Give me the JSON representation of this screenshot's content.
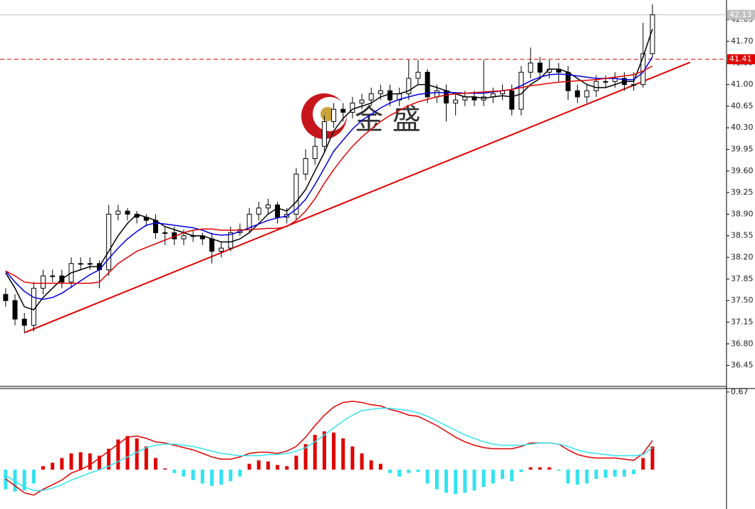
{
  "chart_data": [
    {
      "type": "candlestick",
      "watermark": "金 盛",
      "xlim": [
        -0.6,
        76.9
      ],
      "ylim": [
        36.11,
        42.37
      ],
      "yticks": [
        42.05,
        {
          "value": 41.7,
          "label": "41.70"
        },
        41.35,
        {
          "value": 41.0,
          "label": "41.00"
        },
        40.65,
        {
          "value": 40.3,
          "label": "40.30"
        },
        39.95,
        {
          "value": 39.6,
          "label": "39.60"
        },
        39.25,
        {
          "value": 38.9,
          "label": "38.90"
        },
        38.55,
        {
          "value": 38.2,
          "label": "38.20"
        },
        37.85,
        {
          "value": 37.5,
          "label": "37.50"
        },
        37.15,
        {
          "value": 36.8,
          "label": "36.80"
        },
        36.45
      ],
      "up_color": "#ffffff",
      "down_color": "#000000",
      "outline_color": "#000000",
      "open": [
        37.6,
        37.5,
        37.2,
        37.1,
        37.7,
        37.9,
        37.9,
        37.8,
        38.1,
        38.1,
        38.1,
        38.0,
        38.9,
        38.95,
        38.9,
        38.85,
        38.8,
        38.6,
        38.6,
        38.5,
        38.55,
        38.55,
        38.5,
        38.3,
        38.35,
        38.6,
        38.65,
        38.9,
        39.0,
        39.05,
        38.85,
        38.9,
        39.55,
        39.8,
        40.0,
        40.4,
        40.6,
        40.55,
        40.7,
        40.75,
        40.85,
        40.9,
        40.75,
        40.85,
        41.1,
        41.2,
        40.8,
        40.9,
        40.7,
        40.75,
        40.8,
        40.75,
        40.8,
        40.85,
        40.9,
        40.6,
        41.2,
        41.35,
        41.2,
        41.25,
        41.2,
        40.9,
        40.8,
        40.9,
        41.05,
        41.05,
        41.1,
        41.0,
        41.0,
        41.5
      ],
      "high": [
        37.7,
        37.6,
        37.3,
        37.8,
        38.0,
        38.0,
        38.0,
        38.2,
        38.2,
        38.2,
        38.15,
        39.05,
        39.05,
        39.0,
        38.95,
        38.9,
        38.9,
        38.7,
        38.7,
        38.65,
        38.65,
        38.6,
        38.6,
        38.45,
        38.7,
        38.75,
        39.0,
        39.1,
        39.15,
        39.1,
        39.0,
        39.65,
        39.95,
        40.15,
        40.5,
        40.7,
        40.7,
        40.8,
        40.85,
        40.95,
        41.0,
        41.0,
        40.95,
        41.4,
        41.4,
        41.25,
        41.0,
        41.0,
        40.85,
        40.9,
        40.9,
        41.4,
        40.95,
        41.0,
        41.0,
        41.3,
        41.6,
        41.45,
        41.4,
        41.35,
        41.3,
        41.0,
        41.0,
        41.15,
        41.15,
        41.2,
        41.2,
        41.2,
        42.0,
        42.3
      ],
      "low": [
        37.4,
        37.1,
        36.98,
        37.0,
        37.6,
        37.8,
        37.7,
        37.7,
        38.0,
        38.0,
        37.7,
        37.9,
        38.8,
        38.8,
        38.75,
        38.7,
        38.5,
        38.4,
        38.4,
        38.4,
        38.45,
        38.4,
        38.1,
        38.2,
        38.3,
        38.55,
        38.6,
        38.8,
        38.9,
        38.75,
        38.75,
        38.8,
        39.45,
        39.7,
        39.9,
        40.3,
        40.4,
        40.45,
        40.6,
        40.65,
        40.75,
        40.65,
        40.65,
        40.75,
        41.0,
        40.7,
        40.7,
        40.4,
        40.5,
        40.65,
        40.65,
        40.65,
        40.7,
        40.75,
        40.5,
        40.5,
        41.1,
        41.1,
        41.1,
        41.05,
        40.75,
        40.7,
        40.7,
        40.8,
        40.95,
        40.95,
        40.9,
        40.9,
        40.95,
        41.45
      ],
      "close": [
        37.5,
        37.2,
        37.1,
        37.7,
        37.9,
        37.9,
        37.8,
        38.1,
        38.1,
        38.1,
        38.0,
        38.9,
        38.95,
        38.9,
        38.85,
        38.8,
        38.6,
        38.6,
        38.5,
        38.55,
        38.55,
        38.5,
        38.3,
        38.35,
        38.6,
        38.65,
        38.9,
        39.0,
        39.05,
        38.85,
        38.9,
        39.55,
        39.8,
        40.0,
        40.4,
        40.6,
        40.55,
        40.7,
        40.75,
        40.85,
        40.9,
        40.75,
        40.85,
        41.1,
        41.2,
        40.8,
        40.9,
        40.7,
        40.75,
        40.8,
        40.75,
        40.8,
        40.85,
        40.9,
        40.6,
        41.2,
        41.35,
        41.2,
        41.25,
        41.2,
        40.9,
        40.8,
        40.9,
        41.05,
        41.05,
        41.1,
        41.0,
        41.0,
        41.5,
        42.13
      ],
      "series": [
        {
          "color": "#000000",
          "values": [
            37.95,
            37.7,
            37.4,
            37.35,
            37.55,
            37.7,
            37.85,
            37.95,
            38.0,
            38.05,
            38.05,
            38.3,
            38.55,
            38.75,
            38.9,
            38.85,
            38.8,
            38.7,
            38.65,
            38.6,
            38.55,
            38.55,
            38.5,
            38.45,
            38.45,
            38.5,
            38.6,
            38.75,
            38.9,
            39.0,
            38.95,
            39.1,
            39.3,
            39.6,
            39.9,
            40.25,
            40.45,
            40.6,
            40.65,
            40.7,
            40.8,
            40.85,
            40.85,
            40.9,
            41.0,
            41.0,
            40.95,
            40.9,
            40.85,
            40.8,
            40.8,
            40.78,
            40.8,
            40.82,
            40.8,
            40.85,
            41.0,
            41.1,
            41.25,
            41.25,
            41.2,
            41.1,
            41.0,
            40.95,
            40.95,
            41.0,
            41.05,
            41.05,
            41.45,
            41.9
          ]
        },
        {
          "color": "#0000dd",
          "values": [
            37.98,
            37.8,
            37.65,
            37.55,
            37.52,
            37.55,
            37.62,
            37.72,
            37.82,
            37.92,
            38.0,
            38.18,
            38.35,
            38.5,
            38.62,
            38.72,
            38.76,
            38.74,
            38.72,
            38.7,
            38.68,
            38.64,
            38.58,
            38.56,
            38.57,
            38.62,
            38.68,
            38.74,
            38.8,
            38.84,
            38.87,
            38.98,
            39.14,
            39.38,
            39.65,
            39.92,
            40.1,
            40.28,
            40.42,
            40.52,
            40.62,
            40.7,
            40.76,
            40.8,
            40.84,
            40.86,
            40.87,
            40.87,
            40.87,
            40.86,
            40.86,
            40.86,
            40.88,
            40.9,
            40.92,
            40.98,
            41.06,
            41.12,
            41.16,
            41.17,
            41.16,
            41.14,
            41.12,
            41.1,
            41.1,
            41.1,
            41.08,
            41.08,
            41.2,
            41.45
          ]
        },
        {
          "color": "#e00000",
          "values": [
            37.98,
            37.9,
            37.8,
            37.78,
            37.78,
            37.78,
            37.78,
            37.78,
            37.78,
            37.78,
            37.8,
            37.95,
            38.1,
            38.2,
            38.3,
            38.36,
            38.42,
            38.48,
            38.54,
            38.6,
            38.64,
            38.66,
            38.66,
            38.64,
            38.64,
            38.64,
            38.65,
            38.66,
            38.67,
            38.67,
            38.7,
            38.8,
            38.95,
            39.15,
            39.4,
            39.62,
            39.82,
            40.0,
            40.15,
            40.28,
            40.4,
            40.5,
            40.58,
            40.66,
            40.72,
            40.76,
            40.8,
            40.83,
            40.85,
            40.86,
            40.87,
            40.88,
            40.89,
            40.9,
            40.92,
            40.95,
            40.98,
            41.0,
            41.02,
            41.04,
            41.05,
            41.06,
            41.07,
            41.08,
            41.1,
            41.12,
            41.14,
            41.16,
            41.22,
            41.3
          ]
        }
      ],
      "trendline": {
        "x": [
          2,
          73
        ],
        "y": [
          36.98,
          41.36
        ],
        "color": "#e00000"
      },
      "price_lines": [
        {
          "value": 42.13,
          "label": "42.13",
          "color": "#c0c0c0",
          "dashed": false
        },
        {
          "value": 41.41,
          "label": "41.41",
          "color": "#e00000",
          "dashed": true
        }
      ]
    },
    {
      "type": "macd",
      "xlim": [
        -0.6,
        76.9
      ],
      "ylim": [
        -0.34,
        0.7
      ],
      "yticks": [
        0.67
      ],
      "pos_color": "#e00000",
      "neg_color": "#33e3f0",
      "histogram": [
        -0.17,
        -0.19,
        -0.18,
        -0.12,
        0.03,
        0.06,
        0.1,
        0.14,
        0.15,
        0.14,
        0.12,
        0.18,
        0.26,
        0.29,
        0.27,
        0.2,
        0.1,
        0.01,
        -0.03,
        -0.06,
        -0.09,
        -0.12,
        -0.14,
        -0.13,
        -0.1,
        -0.06,
        0.05,
        0.08,
        0.07,
        0.04,
        0.03,
        0.12,
        0.22,
        0.3,
        0.33,
        0.32,
        0.27,
        0.2,
        0.14,
        0.08,
        0.05,
        -0.03,
        -0.06,
        -0.03,
        -0.02,
        -0.12,
        -0.17,
        -0.2,
        -0.21,
        -0.2,
        -0.18,
        -0.15,
        -0.12,
        -0.08,
        -0.1,
        -0.02,
        0.02,
        0.02,
        0.02,
        -0.01,
        -0.12,
        -0.13,
        -0.12,
        -0.08,
        -0.07,
        -0.06,
        -0.06,
        -0.04,
        0.1,
        0.2
      ],
      "series": [
        {
          "color": "#e00000",
          "values": [
            -0.08,
            -0.14,
            -0.2,
            -0.22,
            -0.17,
            -0.13,
            -0.09,
            -0.03,
            0.0,
            0.04,
            0.1,
            0.16,
            0.22,
            0.28,
            0.29,
            0.27,
            0.24,
            0.23,
            0.21,
            0.19,
            0.17,
            0.14,
            0.11,
            0.09,
            0.09,
            0.11,
            0.14,
            0.15,
            0.15,
            0.14,
            0.16,
            0.2,
            0.28,
            0.38,
            0.47,
            0.54,
            0.58,
            0.59,
            0.58,
            0.56,
            0.55,
            0.52,
            0.5,
            0.47,
            0.46,
            0.42,
            0.38,
            0.33,
            0.28,
            0.24,
            0.21,
            0.19,
            0.18,
            0.18,
            0.18,
            0.2,
            0.23,
            0.23,
            0.23,
            0.22,
            0.17,
            0.13,
            0.11,
            0.1,
            0.1,
            0.1,
            0.09,
            0.08,
            0.14,
            0.25
          ]
        },
        {
          "color": "#33e3f0",
          "values": [
            -0.05,
            -0.1,
            -0.15,
            -0.18,
            -0.18,
            -0.16,
            -0.13,
            -0.09,
            -0.06,
            -0.03,
            0.0,
            0.03,
            0.07,
            0.11,
            0.15,
            0.19,
            0.21,
            0.22,
            0.22,
            0.21,
            0.2,
            0.18,
            0.16,
            0.14,
            0.13,
            0.12,
            0.12,
            0.12,
            0.13,
            0.13,
            0.14,
            0.16,
            0.19,
            0.24,
            0.3,
            0.36,
            0.42,
            0.47,
            0.51,
            0.52,
            0.53,
            0.53,
            0.52,
            0.51,
            0.49,
            0.46,
            0.42,
            0.38,
            0.34,
            0.3,
            0.27,
            0.24,
            0.22,
            0.21,
            0.21,
            0.21,
            0.22,
            0.23,
            0.23,
            0.22,
            0.2,
            0.17,
            0.15,
            0.14,
            0.13,
            0.12,
            0.12,
            0.12,
            0.13,
            0.19
          ]
        }
      ]
    }
  ]
}
